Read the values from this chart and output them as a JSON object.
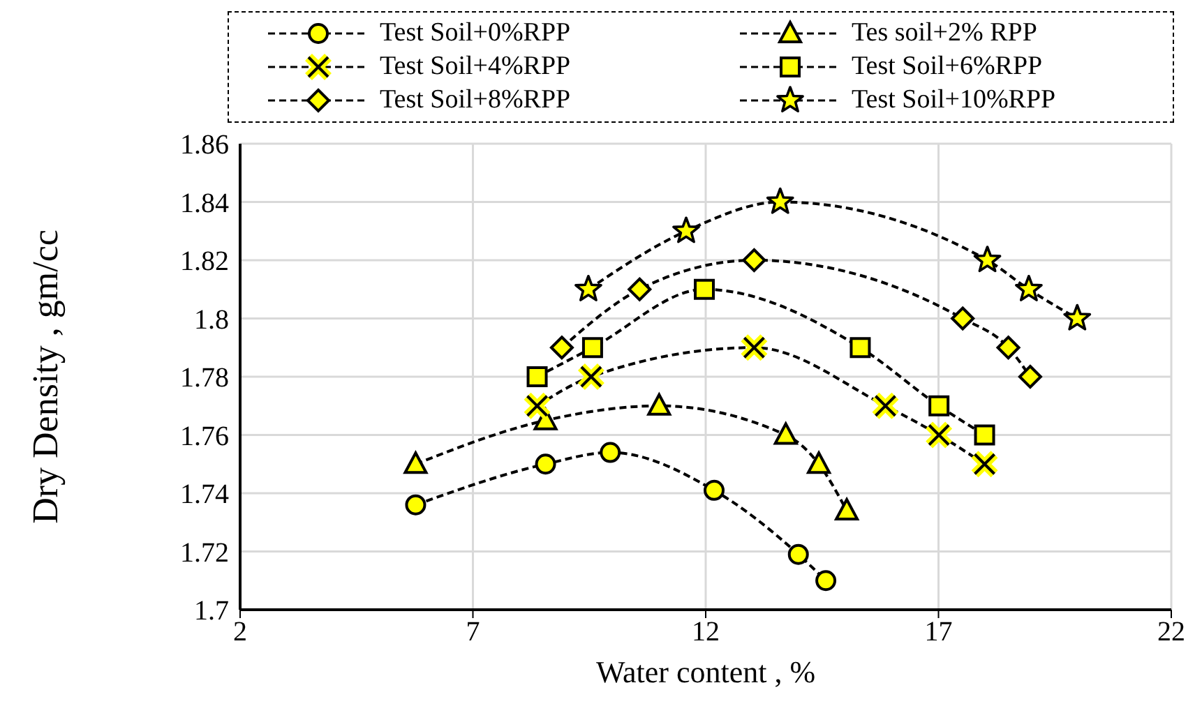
{
  "chart_data": {
    "type": "line",
    "xlabel": "Water content , %",
    "ylabel": "Dry Density , gm/cc",
    "xlim": [
      2,
      22
    ],
    "xticks": [
      2,
      7,
      12,
      17,
      22
    ],
    "ylim": [
      1.7,
      1.86
    ],
    "yticks": [
      1.7,
      1.72,
      1.74,
      1.76,
      1.78,
      1.8,
      1.82,
      1.84,
      1.86
    ],
    "grid": true,
    "legend": "top",
    "line_style": "dashed",
    "series": [
      {
        "name": "Test Soil+0%RPP",
        "color": "#ffff00",
        "marker": "circle",
        "x": [
          5.77,
          8.56,
          9.95,
          12.18,
          13.99,
          14.58
        ],
        "values": [
          1.736,
          1.75,
          1.754,
          1.741,
          1.719,
          1.71
        ]
      },
      {
        "name": "Tes soil+2% RPP",
        "color": "#ffff00",
        "marker": "triangle",
        "x": [
          5.77,
          8.56,
          11.0,
          13.72,
          14.43,
          15.03
        ],
        "values": [
          1.75,
          1.765,
          1.77,
          1.76,
          1.75,
          1.734
        ]
      },
      {
        "name": "Test Soil+4%RPP",
        "color": "#ffff00",
        "marker": "cross",
        "x": [
          8.38,
          9.54,
          13.04,
          15.86,
          17.01,
          17.99
        ],
        "values": [
          1.77,
          1.78,
          1.79,
          1.77,
          1.76,
          1.75
        ]
      },
      {
        "name": "Test Soil+6%RPP",
        "color": "#ffff00",
        "marker": "square",
        "x": [
          8.38,
          9.57,
          11.97,
          15.32,
          17.01,
          17.99
        ],
        "values": [
          1.78,
          1.79,
          1.81,
          1.79,
          1.77,
          1.76
        ]
      },
      {
        "name": "Test Soil+8%RPP",
        "color": "#ffff00",
        "marker": "diamond",
        "x": [
          8.91,
          10.58,
          13.04,
          17.52,
          18.5,
          18.97
        ],
        "values": [
          1.79,
          1.81,
          1.82,
          1.8,
          1.79,
          1.78
        ]
      },
      {
        "name": "Test Soil+10%RPP",
        "color": "#ffff00",
        "marker": "star",
        "x": [
          9.48,
          11.58,
          13.6,
          18.05,
          18.94,
          19.98
        ],
        "values": [
          1.81,
          1.83,
          1.84,
          1.82,
          1.81,
          1.8
        ]
      }
    ]
  }
}
